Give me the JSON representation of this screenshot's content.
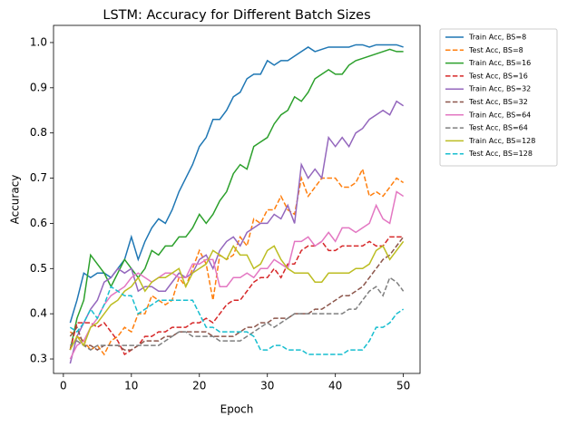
{
  "chart_data": {
    "type": "line",
    "title": "LSTM: Accuracy for Different Batch Sizes",
    "x_label": "Epoch",
    "y_label": "Accuracy",
    "x": [
      1,
      2,
      3,
      4,
      5,
      6,
      7,
      8,
      9,
      10,
      11,
      12,
      13,
      14,
      15,
      16,
      17,
      18,
      19,
      20,
      21,
      22,
      23,
      24,
      25,
      26,
      27,
      28,
      29,
      30,
      31,
      32,
      33,
      34,
      35,
      36,
      37,
      38,
      39,
      40,
      41,
      42,
      43,
      44,
      45,
      46,
      47,
      48,
      49,
      50
    ],
    "xlim": [
      -1.45,
      52.45
    ],
    "xticks": [
      0,
      10,
      20,
      30,
      40,
      50
    ],
    "ylim": [
      0.268,
      1.038
    ],
    "yticks": [
      0.3,
      0.4,
      0.5,
      0.6,
      0.7,
      0.8,
      0.9,
      {
        "value": 1,
        "label": "1.0"
      }
    ],
    "legend": "outside-upper-right",
    "series": [
      {
        "name": "Train Acc, BS=8",
        "color": "#1f77b4",
        "linestyle": "solid",
        "values": [
          0.38,
          0.43,
          0.49,
          0.48,
          0.49,
          0.49,
          0.48,
          0.5,
          0.52,
          0.57,
          0.52,
          0.56,
          0.59,
          0.61,
          0.6,
          0.63,
          0.67,
          0.7,
          0.73,
          0.77,
          0.79,
          0.83,
          0.83,
          0.85,
          0.88,
          0.89,
          0.92,
          0.93,
          0.93,
          0.96,
          0.95,
          0.96,
          0.96,
          0.97,
          0.98,
          0.99,
          0.98,
          0.985,
          0.99,
          0.99,
          0.99,
          0.99,
          0.995,
          0.995,
          0.99,
          0.995,
          0.995,
          0.995,
          0.995,
          0.99
        ]
      },
      {
        "name": "Test Acc, BS=8",
        "color": "#ff7f0e",
        "linestyle": "dashed",
        "values": [
          0.36,
          0.35,
          0.34,
          0.32,
          0.33,
          0.31,
          0.34,
          0.35,
          0.37,
          0.36,
          0.4,
          0.4,
          0.44,
          0.43,
          0.42,
          0.43,
          0.48,
          0.46,
          0.5,
          0.54,
          0.51,
          0.43,
          0.53,
          0.52,
          0.53,
          0.57,
          0.55,
          0.61,
          0.6,
          0.63,
          0.63,
          0.66,
          0.63,
          0.62,
          0.7,
          0.66,
          0.68,
          0.7,
          0.7,
          0.7,
          0.68,
          0.68,
          0.69,
          0.72,
          0.66,
          0.67,
          0.66,
          0.68,
          0.7,
          0.69
        ]
      },
      {
        "name": "Train Acc, BS=16",
        "color": "#2ca02c",
        "linestyle": "solid",
        "values": [
          0.32,
          0.39,
          0.43,
          0.53,
          0.51,
          0.49,
          0.46,
          0.49,
          0.52,
          0.5,
          0.48,
          0.5,
          0.54,
          0.53,
          0.55,
          0.55,
          0.57,
          0.57,
          0.59,
          0.62,
          0.6,
          0.62,
          0.65,
          0.67,
          0.71,
          0.73,
          0.72,
          0.77,
          0.78,
          0.79,
          0.82,
          0.84,
          0.85,
          0.88,
          0.87,
          0.89,
          0.92,
          0.93,
          0.94,
          0.93,
          0.93,
          0.95,
          0.96,
          0.965,
          0.97,
          0.975,
          0.98,
          0.985,
          0.98,
          0.98
        ]
      },
      {
        "name": "Test Acc, BS=16",
        "color": "#d62728",
        "linestyle": "dashed",
        "values": [
          0.32,
          0.38,
          0.38,
          0.38,
          0.37,
          0.38,
          0.36,
          0.34,
          0.31,
          0.32,
          0.33,
          0.35,
          0.35,
          0.36,
          0.36,
          0.37,
          0.37,
          0.37,
          0.38,
          0.38,
          0.39,
          0.38,
          0.4,
          0.42,
          0.43,
          0.43,
          0.45,
          0.47,
          0.48,
          0.48,
          0.5,
          0.48,
          0.51,
          0.51,
          0.54,
          0.55,
          0.55,
          0.56,
          0.54,
          0.54,
          0.55,
          0.55,
          0.55,
          0.55,
          0.56,
          0.55,
          0.55,
          0.57,
          0.57,
          0.57
        ]
      },
      {
        "name": "Train Acc, BS=32",
        "color": "#9467bd",
        "linestyle": "solid",
        "values": [
          0.29,
          0.35,
          0.38,
          0.41,
          0.43,
          0.47,
          0.48,
          0.5,
          0.49,
          0.5,
          0.45,
          0.46,
          0.46,
          0.45,
          0.45,
          0.47,
          0.49,
          0.48,
          0.49,
          0.52,
          0.53,
          0.5,
          0.54,
          0.56,
          0.57,
          0.55,
          0.58,
          0.59,
          0.6,
          0.6,
          0.62,
          0.61,
          0.64,
          0.6,
          0.73,
          0.7,
          0.72,
          0.7,
          0.79,
          0.77,
          0.79,
          0.77,
          0.8,
          0.81,
          0.83,
          0.84,
          0.85,
          0.84,
          0.87,
          0.86
        ]
      },
      {
        "name": "Test Acc, BS=32",
        "color": "#8c564b",
        "linestyle": "dashed",
        "values": [
          0.35,
          0.37,
          0.33,
          0.33,
          0.32,
          0.33,
          0.33,
          0.33,
          0.32,
          0.32,
          0.33,
          0.34,
          0.34,
          0.34,
          0.35,
          0.35,
          0.36,
          0.36,
          0.36,
          0.36,
          0.36,
          0.35,
          0.35,
          0.35,
          0.35,
          0.36,
          0.37,
          0.37,
          0.38,
          0.38,
          0.39,
          0.39,
          0.39,
          0.4,
          0.4,
          0.4,
          0.41,
          0.41,
          0.42,
          0.43,
          0.44,
          0.44,
          0.45,
          0.46,
          0.48,
          0.5,
          0.52,
          0.53,
          0.55,
          0.57
        ]
      },
      {
        "name": "Train Acc, BS=64",
        "color": "#e377c2",
        "linestyle": "solid",
        "values": [
          0.3,
          0.33,
          0.34,
          0.37,
          0.39,
          0.42,
          0.44,
          0.45,
          0.46,
          0.48,
          0.49,
          0.48,
          0.47,
          0.48,
          0.49,
          0.49,
          0.48,
          0.48,
          0.51,
          0.51,
          0.52,
          0.52,
          0.46,
          0.46,
          0.48,
          0.48,
          0.49,
          0.48,
          0.5,
          0.5,
          0.52,
          0.51,
          0.5,
          0.56,
          0.56,
          0.57,
          0.55,
          0.56,
          0.58,
          0.56,
          0.59,
          0.59,
          0.58,
          0.59,
          0.6,
          0.64,
          0.61,
          0.6,
          0.67,
          0.66
        ]
      },
      {
        "name": "Test Acc, BS=64",
        "color": "#7f7f7f",
        "linestyle": "dashed",
        "values": [
          0.33,
          0.34,
          0.33,
          0.32,
          0.33,
          0.33,
          0.33,
          0.33,
          0.33,
          0.33,
          0.33,
          0.33,
          0.33,
          0.33,
          0.34,
          0.35,
          0.36,
          0.36,
          0.35,
          0.35,
          0.35,
          0.35,
          0.34,
          0.34,
          0.34,
          0.34,
          0.35,
          0.36,
          0.37,
          0.38,
          0.37,
          0.38,
          0.39,
          0.4,
          0.4,
          0.4,
          0.4,
          0.4,
          0.4,
          0.4,
          0.4,
          0.41,
          0.41,
          0.43,
          0.45,
          0.46,
          0.44,
          0.48,
          0.47,
          0.45
        ]
      },
      {
        "name": "Train Acc, BS=128",
        "color": "#bcbd22",
        "linestyle": "solid",
        "values": [
          0.32,
          0.35,
          0.33,
          0.37,
          0.38,
          0.4,
          0.42,
          0.43,
          0.45,
          0.46,
          0.48,
          0.45,
          0.47,
          0.48,
          0.48,
          0.49,
          0.5,
          0.46,
          0.49,
          0.5,
          0.51,
          0.54,
          0.53,
          0.52,
          0.55,
          0.53,
          0.53,
          0.5,
          0.51,
          0.54,
          0.55,
          0.52,
          0.5,
          0.49,
          0.49,
          0.49,
          0.47,
          0.47,
          0.49,
          0.49,
          0.49,
          0.49,
          0.5,
          0.5,
          0.51,
          0.54,
          0.55,
          0.52,
          0.54,
          0.56
        ]
      },
      {
        "name": "Test Acc, BS=128",
        "color": "#17becf",
        "linestyle": "dashed",
        "values": [
          0.37,
          0.36,
          0.38,
          0.41,
          0.39,
          0.42,
          0.46,
          0.45,
          0.44,
          0.44,
          0.4,
          0.41,
          0.42,
          0.43,
          0.43,
          0.43,
          0.43,
          0.43,
          0.43,
          0.4,
          0.37,
          0.37,
          0.36,
          0.36,
          0.36,
          0.36,
          0.36,
          0.35,
          0.32,
          0.32,
          0.33,
          0.33,
          0.32,
          0.32,
          0.32,
          0.31,
          0.31,
          0.31,
          0.31,
          0.31,
          0.31,
          0.32,
          0.32,
          0.32,
          0.34,
          0.37,
          0.37,
          0.38,
          0.4,
          0.41
        ]
      }
    ]
  }
}
